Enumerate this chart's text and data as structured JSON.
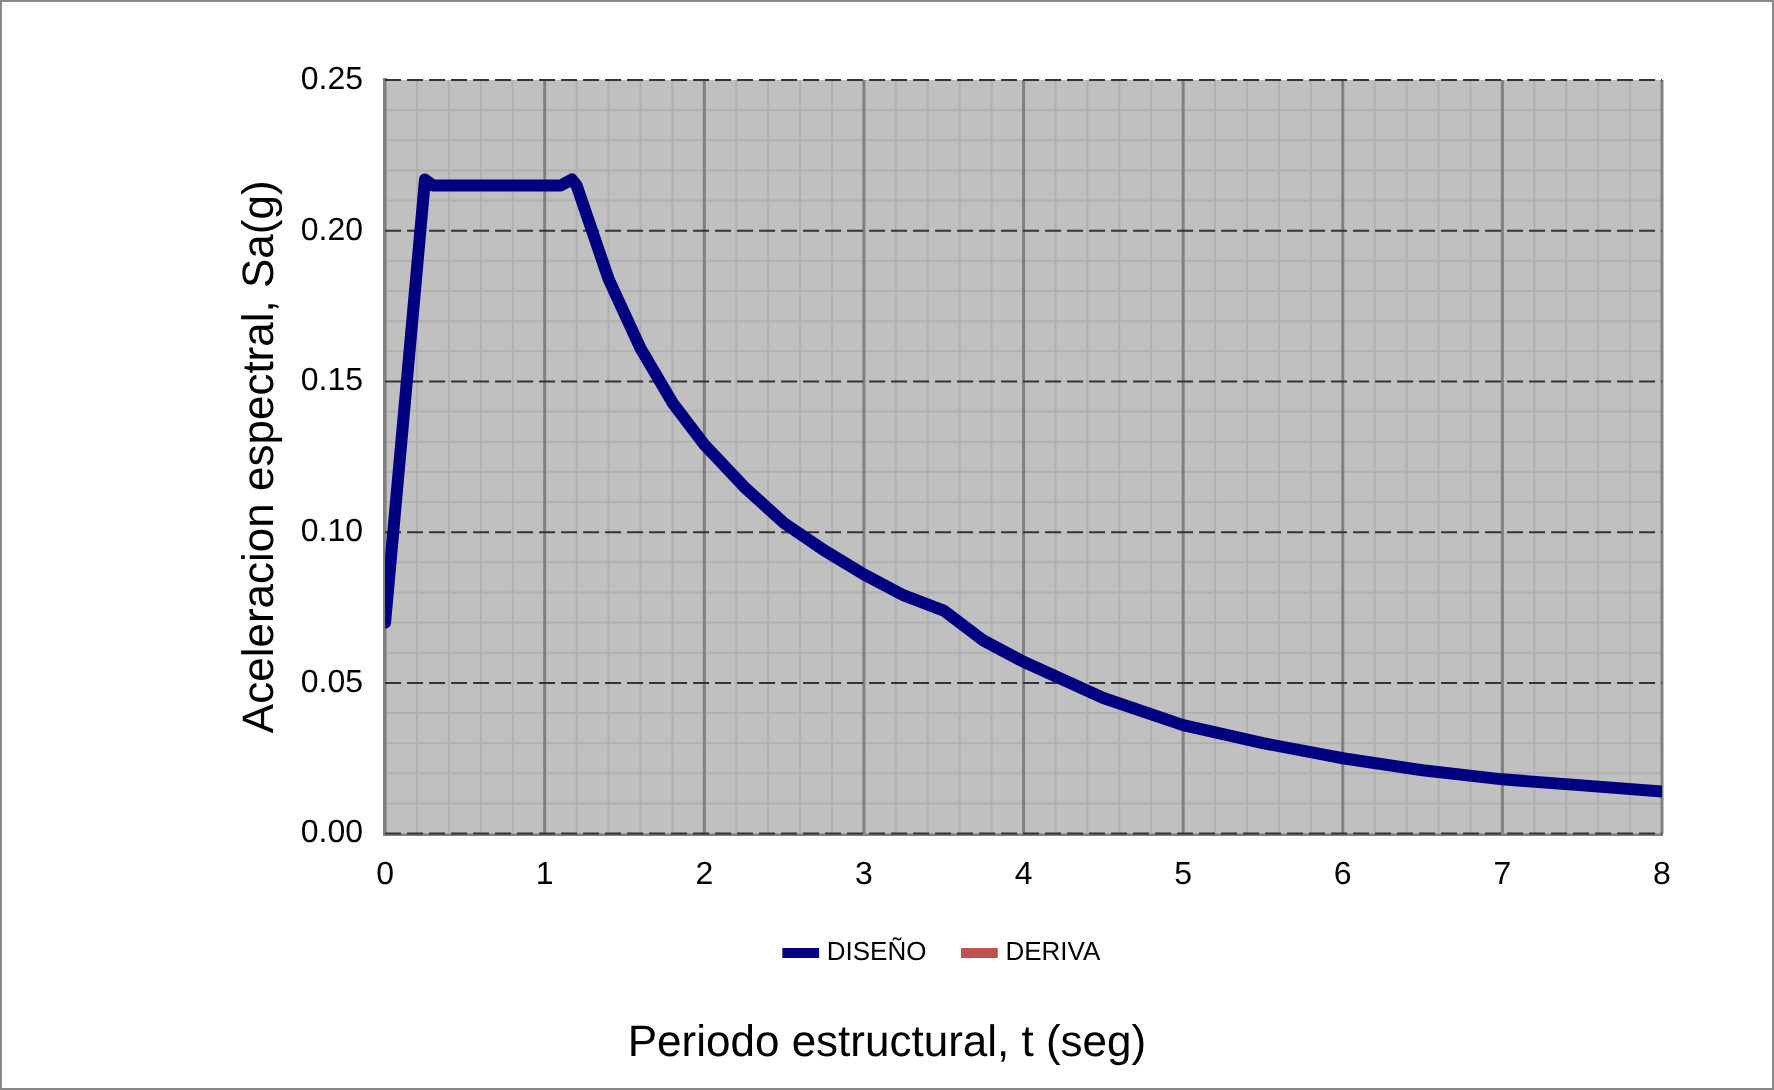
{
  "chart_data": {
    "type": "line",
    "xlabel": "Periodo estructural, t (seg)",
    "ylabel": "Aceleracion espectral, Sa(g)",
    "x": [
      0,
      0.25,
      0.3,
      1.1,
      1.17,
      1.2,
      1.4,
      1.6,
      1.8,
      2,
      2.25,
      2.5,
      2.75,
      3,
      3.25,
      3.5,
      3.75,
      4,
      4.5,
      5,
      5.5,
      6,
      6.5,
      7,
      7.5,
      8
    ],
    "series": [
      {
        "name": "DISEÑO",
        "color": "#000080",
        "values": [
          0.07,
          0.217,
          0.215,
          0.215,
          0.217,
          0.215,
          0.184,
          0.161,
          0.143,
          0.129,
          0.115,
          0.103,
          0.094,
          0.086,
          0.079,
          0.074,
          0.064,
          0.057,
          0.045,
          0.036,
          0.03,
          0.025,
          0.021,
          0.018,
          0.016,
          0.014
        ]
      },
      {
        "name": "DERIVA",
        "color": "#c0504d",
        "values": [
          null,
          null,
          null,
          null,
          null,
          null,
          null,
          null,
          null,
          null,
          null,
          null,
          null,
          null,
          null,
          null,
          null,
          null,
          null,
          null,
          null,
          null,
          null,
          null,
          null,
          null
        ]
      }
    ],
    "xlim": [
      0,
      8
    ],
    "xticks": [
      0,
      1,
      2,
      3,
      4,
      5,
      6,
      7,
      8
    ],
    "ylim": [
      0,
      0.25
    ],
    "yticks": [
      {
        "value": 0,
        "label": "0.00"
      },
      {
        "value": 0.05,
        "label": "0.05"
      },
      {
        "value": 0.1,
        "label": "0.10"
      },
      {
        "value": 0.15,
        "label": "0.15"
      },
      {
        "value": 0.2,
        "label": "0.20"
      },
      {
        "value": 0.25,
        "label": "0.25"
      }
    ],
    "grid": true,
    "legend": "bottom",
    "marker": "none",
    "line_style": "solid"
  }
}
